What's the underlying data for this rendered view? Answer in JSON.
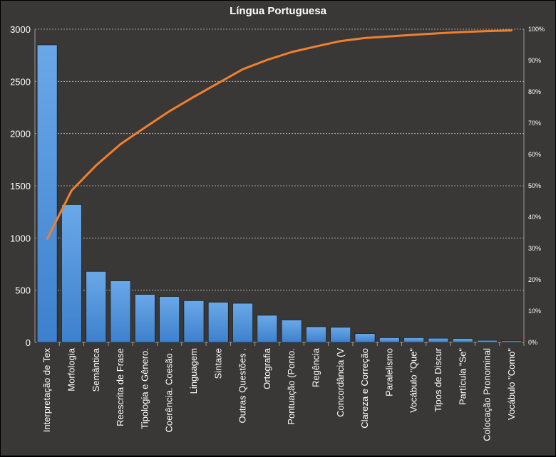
{
  "chart_data": {
    "type": "bar",
    "title": "Língua Portuguesa",
    "categories": [
      "Interpretação de Tex",
      "Morfologia",
      "Semântica",
      "Reescrita de Frase",
      "Tipologia e Gênero.",
      "Coerência. Coesão .",
      "Linguagem",
      "Sintaxe",
      "Outras Questões .",
      "Ortografia",
      "Pontuação (Ponto.",
      "Regência",
      "Concordância (V",
      "Clareza e Correção",
      "Paralelismo",
      "Vocábulo \"Que\"",
      "Tipos de Discur",
      "Partícula \"Se\"",
      "Colocação Pronominal",
      "Vocábulo \"Como\""
    ],
    "series": [
      {
        "type": "bar",
        "axis": "left",
        "values": [
          2850,
          1320,
          680,
          590,
          460,
          440,
          400,
          385,
          375,
          260,
          215,
          150,
          145,
          85,
          45,
          45,
          40,
          38,
          20,
          15
        ]
      },
      {
        "type": "line",
        "axis": "right",
        "values": [
          0.33,
          0.485,
          0.565,
          0.633,
          0.686,
          0.738,
          0.784,
          0.828,
          0.872,
          0.902,
          0.927,
          0.945,
          0.962,
          0.972,
          0.977,
          0.982,
          0.987,
          0.991,
          0.994,
          0.996
        ]
      }
    ],
    "ylim": [
      0,
      3000
    ],
    "yticks": [
      0,
      500,
      1000,
      1500,
      2000,
      2500,
      3000
    ],
    "y2lim": [
      0,
      1
    ],
    "y2ticks": [
      "0%",
      "10%",
      "20%",
      "30%",
      "40%",
      "50%",
      "60%",
      "70%",
      "80%",
      "90%",
      "100%"
    ],
    "grid": true,
    "legend": "none",
    "colors": {
      "bar": "#4a8fd8",
      "line": "#f07f2e",
      "background": "#3a3836",
      "text": "#ffffff"
    }
  }
}
